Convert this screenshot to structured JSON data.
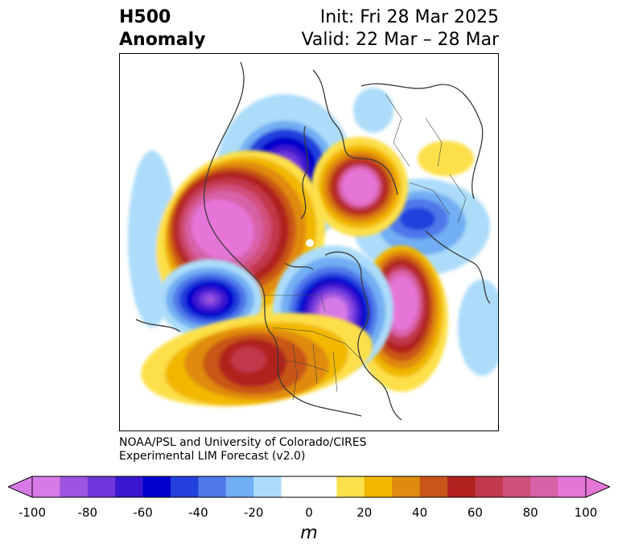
{
  "title": {
    "left_line1": "H500",
    "left_line2": "Anomaly",
    "right_line1": "Init: Fri 28 Mar 2025",
    "right_line2": "Valid: 22 Mar – 28 Mar"
  },
  "credit": {
    "line1": "NOAA/PSL and University of Colorado/CIRES",
    "line2": "Experimental LIM Forecast (v2.0)"
  },
  "colorbar": {
    "unit": "m",
    "ticks": [
      "-100",
      "-80",
      "-60",
      "-40",
      "-20",
      "0",
      "20",
      "40",
      "60",
      "80",
      "100"
    ],
    "colors": [
      "#d77ae8",
      "#9d54de",
      "#6f37dc",
      "#3b17cf",
      "#0000cc",
      "#2441dd",
      "#4f78ea",
      "#71aef3",
      "#acdcfa",
      "#ffffff",
      "#ffffff",
      "#fde04a",
      "#f2b800",
      "#e08b10",
      "#c95518",
      "#b0201f",
      "#c2384c",
      "#d14f7c",
      "#d862a8",
      "#e675d8"
    ]
  },
  "map": {
    "anomalies": [
      {
        "sign": "neg",
        "peak": -95
      },
      {
        "sign": "pos",
        "peak": 100
      },
      {
        "sign": "pos",
        "peak": 95
      },
      {
        "sign": "neg",
        "peak": -75
      },
      {
        "sign": "neg",
        "peak": -100
      },
      {
        "sign": "pos",
        "peak": 90
      },
      {
        "sign": "neg",
        "peak": -50
      },
      {
        "sign": "pos",
        "peak": 65
      }
    ]
  }
}
